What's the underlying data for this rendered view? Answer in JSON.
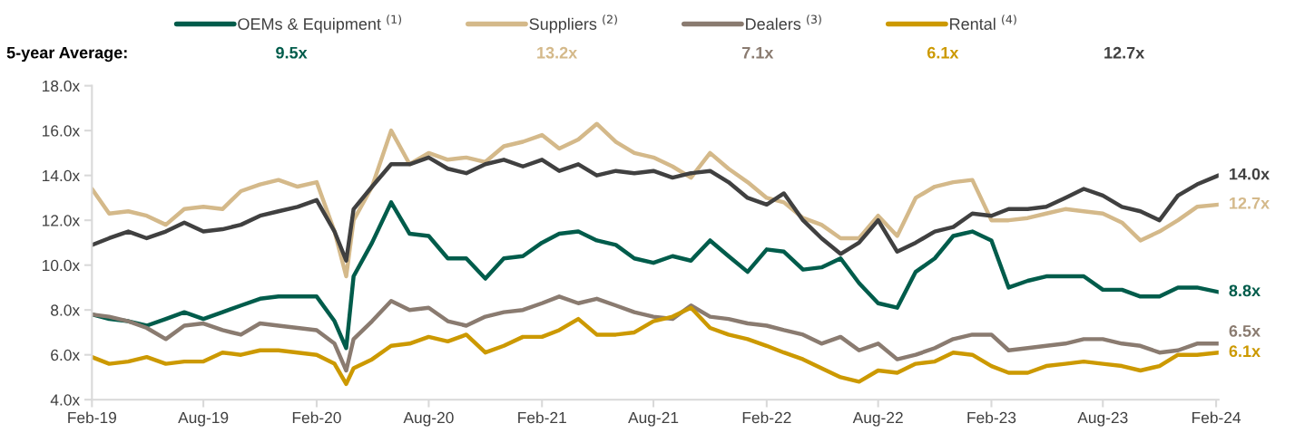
{
  "chart_data": {
    "type": "line",
    "x": [
      "2019-02-01",
      "2019-03-01",
      "2019-04-01",
      "2019-05-01",
      "2019-06-01",
      "2019-07-01",
      "2019-08-01",
      "2019-09-01",
      "2019-10-01",
      "2019-11-01",
      "2019-12-01",
      "2020-01-01",
      "2020-02-01",
      "2020-03-01",
      "2020-03-20",
      "2020-04-01",
      "2020-05-01",
      "2020-06-01",
      "2020-07-01",
      "2020-08-01",
      "2020-09-01",
      "2020-10-01",
      "2020-11-01",
      "2020-12-01",
      "2021-01-01",
      "2021-02-01",
      "2021-03-01",
      "2021-04-01",
      "2021-05-01",
      "2021-06-01",
      "2021-07-01",
      "2021-08-01",
      "2021-09-01",
      "2021-10-01",
      "2021-11-01",
      "2021-12-01",
      "2022-01-01",
      "2022-02-01",
      "2022-03-01",
      "2022-04-01",
      "2022-05-01",
      "2022-06-01",
      "2022-07-01",
      "2022-08-01",
      "2022-09-01",
      "2022-10-01",
      "2022-11-01",
      "2022-12-01",
      "2023-01-01",
      "2023-02-01",
      "2023-03-01",
      "2023-04-01",
      "2023-05-01",
      "2023-06-01",
      "2023-07-01",
      "2023-08-01",
      "2023-09-01",
      "2023-10-01",
      "2023-11-01",
      "2023-12-01",
      "2024-01-01",
      "2024-02-05"
    ],
    "series": [
      {
        "name": "OEMs & Equipment $^{(1)}$",
        "color": "#005c4b",
        "values": [
          7.8,
          7.6,
          7.5,
          7.3,
          7.6,
          7.9,
          7.6,
          7.9,
          8.2,
          8.5,
          8.6,
          8.6,
          8.6,
          7.5,
          6.3,
          9.5,
          11.0,
          12.8,
          11.4,
          11.3,
          10.3,
          10.3,
          9.4,
          10.3,
          10.4,
          11.0,
          11.4,
          11.5,
          11.1,
          10.9,
          10.3,
          10.1,
          10.4,
          10.2,
          11.1,
          10.4,
          9.7,
          10.7,
          10.6,
          9.8,
          9.9,
          10.3,
          9.2,
          8.3,
          8.1,
          9.7,
          10.3,
          11.3,
          11.5,
          11.1,
          9.0,
          9.3,
          9.5,
          9.5,
          9.5,
          8.9,
          8.9,
          8.6,
          8.6,
          9.0,
          9.0,
          8.8
        ],
        "value_labels": [
          null,
          null,
          null,
          null,
          null,
          null,
          null,
          null,
          null,
          null,
          null,
          null,
          null,
          null,
          null,
          null,
          null,
          null,
          null,
          null,
          null,
          null,
          null,
          null,
          null,
          null,
          null,
          null,
          null,
          null,
          null,
          null,
          null,
          null,
          null,
          null,
          null,
          null,
          null,
          null,
          null,
          null,
          null,
          null,
          null,
          null,
          null,
          null,
          null,
          null,
          null,
          null,
          null,
          null,
          null,
          null,
          null,
          null,
          null,
          null,
          null,
          "8.8x"
        ]
      },
      {
        "name": "Suppliers $^{(2)}$",
        "color": "#d4b98a",
        "values": [
          13.4,
          12.3,
          12.4,
          12.2,
          11.8,
          12.5,
          12.6,
          12.5,
          13.3,
          13.6,
          13.8,
          13.5,
          13.7,
          11.5,
          9.5,
          12.0,
          13.5,
          16.0,
          14.5,
          15.0,
          14.7,
          14.8,
          14.6,
          15.3,
          15.5,
          15.8,
          15.2,
          15.6,
          16.3,
          15.5,
          15.0,
          14.8,
          14.4,
          13.9,
          15.0,
          14.3,
          13.7,
          13.0,
          12.8,
          12.1,
          11.8,
          11.2,
          11.2,
          12.2,
          11.3,
          13.0,
          13.5,
          13.7,
          13.8,
          12.0,
          12.0,
          12.1,
          12.3,
          12.5,
          12.4,
          12.3,
          11.9,
          11.1,
          11.5,
          12.0,
          12.6,
          12.7
        ],
        "value_labels": [
          null,
          null,
          null,
          null,
          null,
          null,
          null,
          null,
          null,
          null,
          null,
          null,
          null,
          null,
          null,
          null,
          null,
          null,
          null,
          null,
          null,
          null,
          null,
          null,
          null,
          null,
          null,
          null,
          null,
          null,
          null,
          null,
          null,
          null,
          null,
          null,
          null,
          null,
          null,
          null,
          null,
          null,
          null,
          null,
          null,
          null,
          null,
          null,
          null,
          null,
          null,
          null,
          null,
          null,
          null,
          null,
          null,
          null,
          null,
          null,
          null,
          "12.7x"
        ]
      },
      {
        "name": "Dealers $^{(3)}$",
        "color": "#8a7b70",
        "values": [
          7.8,
          7.7,
          7.5,
          7.2,
          6.7,
          7.3,
          7.4,
          7.1,
          6.9,
          7.4,
          7.3,
          7.2,
          7.1,
          6.5,
          5.3,
          6.7,
          7.5,
          8.4,
          8.0,
          8.1,
          7.5,
          7.3,
          7.7,
          7.9,
          8.0,
          8.3,
          8.6,
          8.3,
          8.5,
          8.2,
          7.9,
          7.7,
          7.6,
          8.2,
          7.7,
          7.6,
          7.4,
          7.3,
          7.1,
          6.9,
          6.5,
          6.8,
          6.2,
          6.5,
          5.8,
          6.0,
          6.3,
          6.7,
          6.9,
          6.9,
          6.2,
          6.3,
          6.4,
          6.5,
          6.7,
          6.7,
          6.5,
          6.4,
          6.1,
          6.2,
          6.5,
          6.5
        ],
        "value_labels": [
          null,
          null,
          null,
          null,
          null,
          null,
          null,
          null,
          null,
          null,
          null,
          null,
          null,
          null,
          null,
          null,
          null,
          null,
          null,
          null,
          null,
          null,
          null,
          null,
          null,
          null,
          null,
          null,
          null,
          null,
          null,
          null,
          null,
          null,
          null,
          null,
          null,
          null,
          null,
          null,
          null,
          null,
          null,
          null,
          null,
          null,
          null,
          null,
          null,
          null,
          null,
          null,
          null,
          null,
          null,
          null,
          null,
          null,
          null,
          null,
          null,
          "6.5x"
        ]
      },
      {
        "name": "Rental $^{(4)}$",
        "color": "#cc9900",
        "values": [
          5.9,
          5.6,
          5.7,
          5.9,
          5.6,
          5.7,
          5.7,
          6.1,
          6.0,
          6.2,
          6.2,
          6.1,
          6.0,
          5.6,
          4.7,
          5.4,
          5.8,
          6.4,
          6.5,
          6.8,
          6.6,
          6.9,
          6.1,
          6.4,
          6.8,
          6.8,
          7.1,
          7.6,
          6.9,
          6.9,
          7.0,
          7.5,
          7.7,
          8.1,
          7.2,
          6.9,
          6.7,
          6.4,
          6.1,
          5.8,
          5.4,
          5.0,
          4.8,
          5.3,
          5.2,
          5.6,
          5.7,
          6.1,
          6.0,
          5.5,
          5.2,
          5.2,
          5.5,
          5.6,
          5.7,
          5.6,
          5.5,
          5.3,
          5.5,
          6.0,
          6.0,
          6.1
        ],
        "value_labels": [
          null,
          null,
          null,
          null,
          null,
          null,
          null,
          null,
          null,
          null,
          null,
          null,
          null,
          null,
          null,
          null,
          null,
          null,
          null,
          null,
          null,
          null,
          null,
          null,
          null,
          null,
          null,
          null,
          null,
          null,
          null,
          null,
          null,
          null,
          null,
          null,
          null,
          null,
          null,
          null,
          null,
          null,
          null,
          null,
          null,
          null,
          null,
          null,
          null,
          null,
          null,
          null,
          null,
          null,
          null,
          null,
          null,
          null,
          null,
          null,
          null,
          "6.1x"
        ]
      },
      {
        "color": "#404040",
        "values": [
          10.9,
          11.2,
          11.5,
          11.2,
          11.5,
          11.9,
          11.5,
          11.6,
          11.8,
          12.2,
          12.4,
          12.6,
          12.9,
          11.5,
          10.2,
          12.5,
          13.5,
          14.5,
          14.5,
          14.8,
          14.3,
          14.1,
          14.5,
          14.7,
          14.4,
          14.7,
          14.2,
          14.5,
          14.0,
          14.2,
          14.1,
          14.2,
          13.9,
          14.1,
          14.2,
          13.7,
          13.0,
          12.7,
          13.2,
          12.0,
          11.2,
          10.5,
          11.0,
          12.0,
          10.6,
          11.0,
          11.5,
          11.7,
          12.3,
          12.2,
          12.5,
          12.5,
          12.6,
          13.0,
          13.4,
          13.1,
          12.6,
          12.4,
          12.0,
          13.1,
          13.6,
          14.0
        ],
        "value_labels": [
          null,
          null,
          null,
          null,
          null,
          null,
          null,
          null,
          null,
          null,
          null,
          null,
          null,
          null,
          null,
          null,
          null,
          null,
          null,
          null,
          null,
          null,
          null,
          null,
          null,
          null,
          null,
          null,
          null,
          null,
          null,
          null,
          null,
          null,
          null,
          null,
          null,
          null,
          null,
          null,
          null,
          null,
          null,
          null,
          null,
          null,
          null,
          null,
          null,
          null,
          null,
          null,
          null,
          null,
          null,
          null,
          null,
          null,
          null,
          null,
          null,
          "14.0x"
        ]
      }
    ],
    "annotations": [
      "5-year Average:",
      "9.5x",
      "13.2x",
      "7.1x",
      "6.1x",
      "12.7x"
    ],
    "xlim": [
      "2019-02-01",
      "2024-02-05"
    ],
    "xticks": [
      {
        "value": "2019-02-01",
        "label": "Feb-19"
      },
      {
        "value": "2019-08-01",
        "label": "Aug-19"
      },
      {
        "value": "2020-02-01",
        "label": "Feb-20"
      },
      {
        "value": "2020-08-01",
        "label": "Aug-20"
      },
      {
        "value": "2021-02-01",
        "label": "Feb-21"
      },
      {
        "value": "2021-08-01",
        "label": "Aug-21"
      },
      {
        "value": "2022-02-01",
        "label": "Feb-22"
      },
      {
        "value": "2022-08-01",
        "label": "Aug-22"
      },
      {
        "value": "2023-02-01",
        "label": "Feb-23"
      },
      {
        "value": "2023-08-01",
        "label": "Aug-23"
      },
      {
        "value": "2024-02-01",
        "label": "Feb-24"
      }
    ],
    "ylim": [
      4,
      18
    ],
    "yticks": [
      {
        "value": 4,
        "label": "4.0x"
      },
      {
        "value": 6,
        "label": "6.0x"
      },
      {
        "value": 8,
        "label": "8.0x"
      },
      {
        "value": 10,
        "label": "10.0x"
      },
      {
        "value": 12,
        "label": "12.0x"
      },
      {
        "value": 14,
        "label": "14.0x"
      },
      {
        "value": 16,
        "label": "16.0x"
      },
      {
        "value": 18,
        "label": "18.0x"
      }
    ],
    "grid": false,
    "legend": "top",
    "marker": "none",
    "line_style": "solid"
  }
}
